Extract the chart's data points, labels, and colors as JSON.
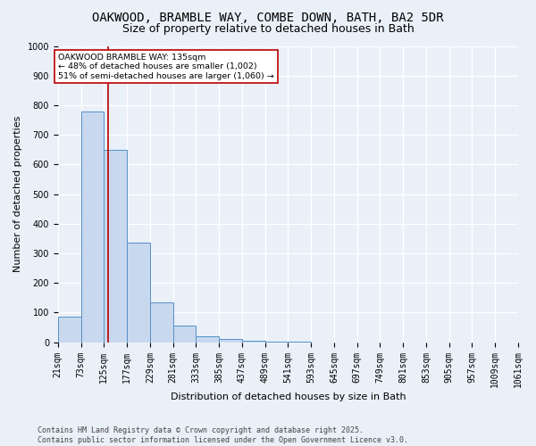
{
  "title1": "OAKWOOD, BRAMBLE WAY, COMBE DOWN, BATH, BA2 5DR",
  "title2": "Size of property relative to detached houses in Bath",
  "xlabel": "Distribution of detached houses by size in Bath",
  "ylabel": "Number of detached properties",
  "bar_values": [
    85,
    780,
    650,
    335,
    135,
    55,
    20,
    10,
    5,
    2,
    1,
    0,
    0,
    0,
    0,
    0,
    0,
    0,
    0,
    0
  ],
  "bin_edges": [
    21,
    73,
    125,
    177,
    229,
    281,
    333,
    385,
    437,
    489,
    541,
    593,
    645,
    697,
    749,
    801,
    853,
    905,
    957,
    1009,
    1061
  ],
  "bar_color": "#c8d8ee",
  "bar_edge_color": "#5590c8",
  "background_color": "#eaf0f8",
  "grid_color": "#ffffff",
  "vline_x": 135,
  "vline_color": "#bb0000",
  "annotation_text": "OAKWOOD BRAMBLE WAY: 135sqm\n← 48% of detached houses are smaller (1,002)\n51% of semi-detached houses are larger (1,060) →",
  "annotation_box_color": "#bb0000",
  "ylim": [
    0,
    1000
  ],
  "yticks": [
    0,
    100,
    200,
    300,
    400,
    500,
    600,
    700,
    800,
    900,
    1000
  ],
  "footer": "Contains HM Land Registry data © Crown copyright and database right 2025.\nContains public sector information licensed under the Open Government Licence v3.0.",
  "title1_fontsize": 10,
  "title2_fontsize": 9,
  "axis_fontsize": 8,
  "tick_fontsize": 7,
  "footer_fontsize": 6
}
